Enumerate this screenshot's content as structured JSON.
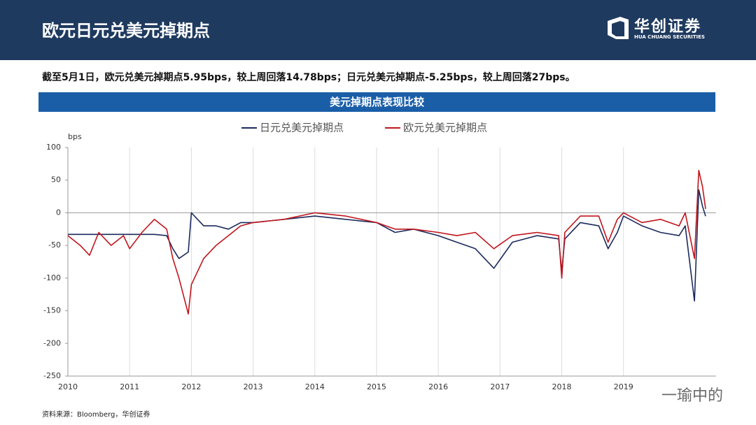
{
  "header": {
    "title": "欧元日元兑美元掉期点",
    "logo_cn": "华创证券",
    "logo_en": "HUA CHUANG SECURITIES"
  },
  "subtitle": "截至5月1日，欧元兑美元掉期点5.95bps，较上周回落14.78bps；日元兑美元掉期点-5.25bps，较上周回落27bps。",
  "banner": "美元掉期点表现比较",
  "source": "资料来源：Bloomberg，华创证券",
  "watermark": "一瑜中的",
  "chart_data": {
    "type": "line",
    "y_label": "bps",
    "x": [
      2010.0,
      2010.2,
      2010.35,
      2010.5,
      2010.7,
      2010.9,
      2011.0,
      2011.2,
      2011.4,
      2011.6,
      2011.7,
      2011.8,
      2011.95,
      2012.0,
      2012.2,
      2012.4,
      2012.6,
      2012.8,
      2013.0,
      2013.5,
      2014.0,
      2014.5,
      2015.0,
      2015.3,
      2015.6,
      2016.0,
      2016.3,
      2016.6,
      2016.9,
      2017.2,
      2017.6,
      2017.95,
      2018.0,
      2018.05,
      2018.3,
      2018.6,
      2018.75,
      2018.9,
      2019.0,
      2019.3,
      2019.6,
      2019.9,
      2020.0,
      2020.15,
      2020.22,
      2020.28,
      2020.33
    ],
    "series": [
      {
        "name": "日元兑美元掉期点",
        "color": "#1b2a5c",
        "values": [
          -33,
          -33,
          -33,
          -33,
          -33,
          -33,
          -33,
          -33,
          -33,
          -35,
          -55,
          -70,
          -60,
          0,
          -20,
          -20,
          -25,
          -15,
          -15,
          -10,
          -5,
          -10,
          -15,
          -30,
          -25,
          -35,
          -45,
          -55,
          -85,
          -45,
          -35,
          -40,
          -90,
          -40,
          -15,
          -20,
          -55,
          -30,
          -5,
          -20,
          -30,
          -35,
          -20,
          -135,
          35,
          10,
          -5.25
        ]
      },
      {
        "name": "欧元兑美元掉期点",
        "color": "#c0161d",
        "values": [
          -35,
          -50,
          -65,
          -30,
          -50,
          -35,
          -55,
          -30,
          -10,
          -25,
          -70,
          -100,
          -155,
          -110,
          -70,
          -50,
          -35,
          -20,
          -15,
          -10,
          0,
          -5,
          -15,
          -25,
          -25,
          -30,
          -35,
          -30,
          -55,
          -35,
          -30,
          -35,
          -100,
          -30,
          -5,
          -5,
          -45,
          -10,
          0,
          -15,
          -10,
          -20,
          0,
          -70,
          65,
          40,
          5.95
        ]
      }
    ],
    "xlim": [
      2010,
      2020.5
    ],
    "xticks": [
      2010,
      2011,
      2012,
      2013,
      2014,
      2015,
      2016,
      2017,
      2018,
      2019
    ],
    "ylim": [
      -250,
      100
    ],
    "yticks": [
      100,
      50,
      0,
      -50,
      -100,
      -150,
      -200,
      -250
    ],
    "grid": "x",
    "legend": "top"
  }
}
